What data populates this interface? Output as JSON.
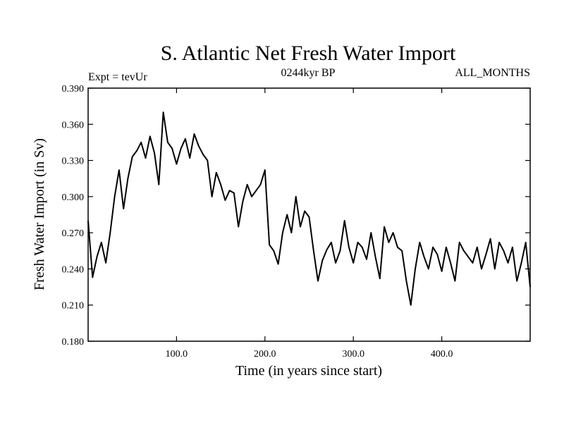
{
  "chart_data": {
    "type": "line",
    "title": "S. Atlantic Net Fresh Water Import",
    "subtitle_left": "Expt = tevUr",
    "subtitle_center": "0244kyr BP",
    "subtitle_right": "ALL_MONTHS",
    "xlabel": "Time (in years since start)",
    "ylabel": "Fresh Water Import (in Sv)",
    "xlim": [
      0,
      500
    ],
    "ylim": [
      0.18,
      0.39
    ],
    "xticks": [
      100,
      200,
      300,
      400
    ],
    "xtick_labels": [
      "100.0",
      "200.0",
      "300.0",
      "400.0"
    ],
    "yticks": [
      0.18,
      0.21,
      0.24,
      0.27,
      0.3,
      0.33,
      0.36,
      0.39
    ],
    "ytick_labels": [
      "0.180",
      "0.210",
      "0.240",
      "0.270",
      "0.300",
      "0.330",
      "0.360",
      "0.390"
    ],
    "grid": false,
    "series": [
      {
        "color": "#000000",
        "x": [
          0,
          5,
          10,
          15,
          20,
          25,
          30,
          35,
          40,
          45,
          50,
          55,
          60,
          65,
          70,
          75,
          80,
          85,
          90,
          95,
          100,
          105,
          110,
          115,
          120,
          125,
          130,
          135,
          140,
          145,
          150,
          155,
          160,
          165,
          170,
          175,
          180,
          185,
          190,
          195,
          200,
          205,
          210,
          215,
          220,
          225,
          230,
          235,
          240,
          245,
          250,
          255,
          260,
          265,
          270,
          275,
          280,
          285,
          290,
          295,
          300,
          305,
          310,
          315,
          320,
          325,
          330,
          335,
          340,
          345,
          350,
          355,
          360,
          365,
          370,
          375,
          380,
          385,
          390,
          395,
          400,
          405,
          410,
          415,
          420,
          425,
          430,
          435,
          440,
          445,
          450,
          455,
          460,
          465,
          470,
          475,
          480,
          485,
          490,
          495,
          500
        ],
        "values": [
          0.28,
          0.233,
          0.25,
          0.262,
          0.245,
          0.27,
          0.3,
          0.322,
          0.29,
          0.315,
          0.333,
          0.338,
          0.345,
          0.332,
          0.35,
          0.336,
          0.31,
          0.37,
          0.345,
          0.34,
          0.327,
          0.34,
          0.348,
          0.332,
          0.352,
          0.342,
          0.335,
          0.33,
          0.3,
          0.32,
          0.31,
          0.297,
          0.305,
          0.303,
          0.275,
          0.296,
          0.31,
          0.3,
          0.305,
          0.31,
          0.322,
          0.26,
          0.255,
          0.244,
          0.27,
          0.285,
          0.27,
          0.3,
          0.275,
          0.288,
          0.283,
          0.255,
          0.23,
          0.247,
          0.256,
          0.262,
          0.245,
          0.255,
          0.28,
          0.258,
          0.245,
          0.262,
          0.258,
          0.248,
          0.27,
          0.25,
          0.232,
          0.275,
          0.262,
          0.27,
          0.258,
          0.255,
          0.23,
          0.21,
          0.24,
          0.262,
          0.25,
          0.24,
          0.258,
          0.252,
          0.238,
          0.258,
          0.245,
          0.23,
          0.262,
          0.255,
          0.25,
          0.245,
          0.258,
          0.24,
          0.252,
          0.265,
          0.24,
          0.262,
          0.255,
          0.245,
          0.258,
          0.23,
          0.245,
          0.262,
          0.225
        ]
      }
    ]
  }
}
